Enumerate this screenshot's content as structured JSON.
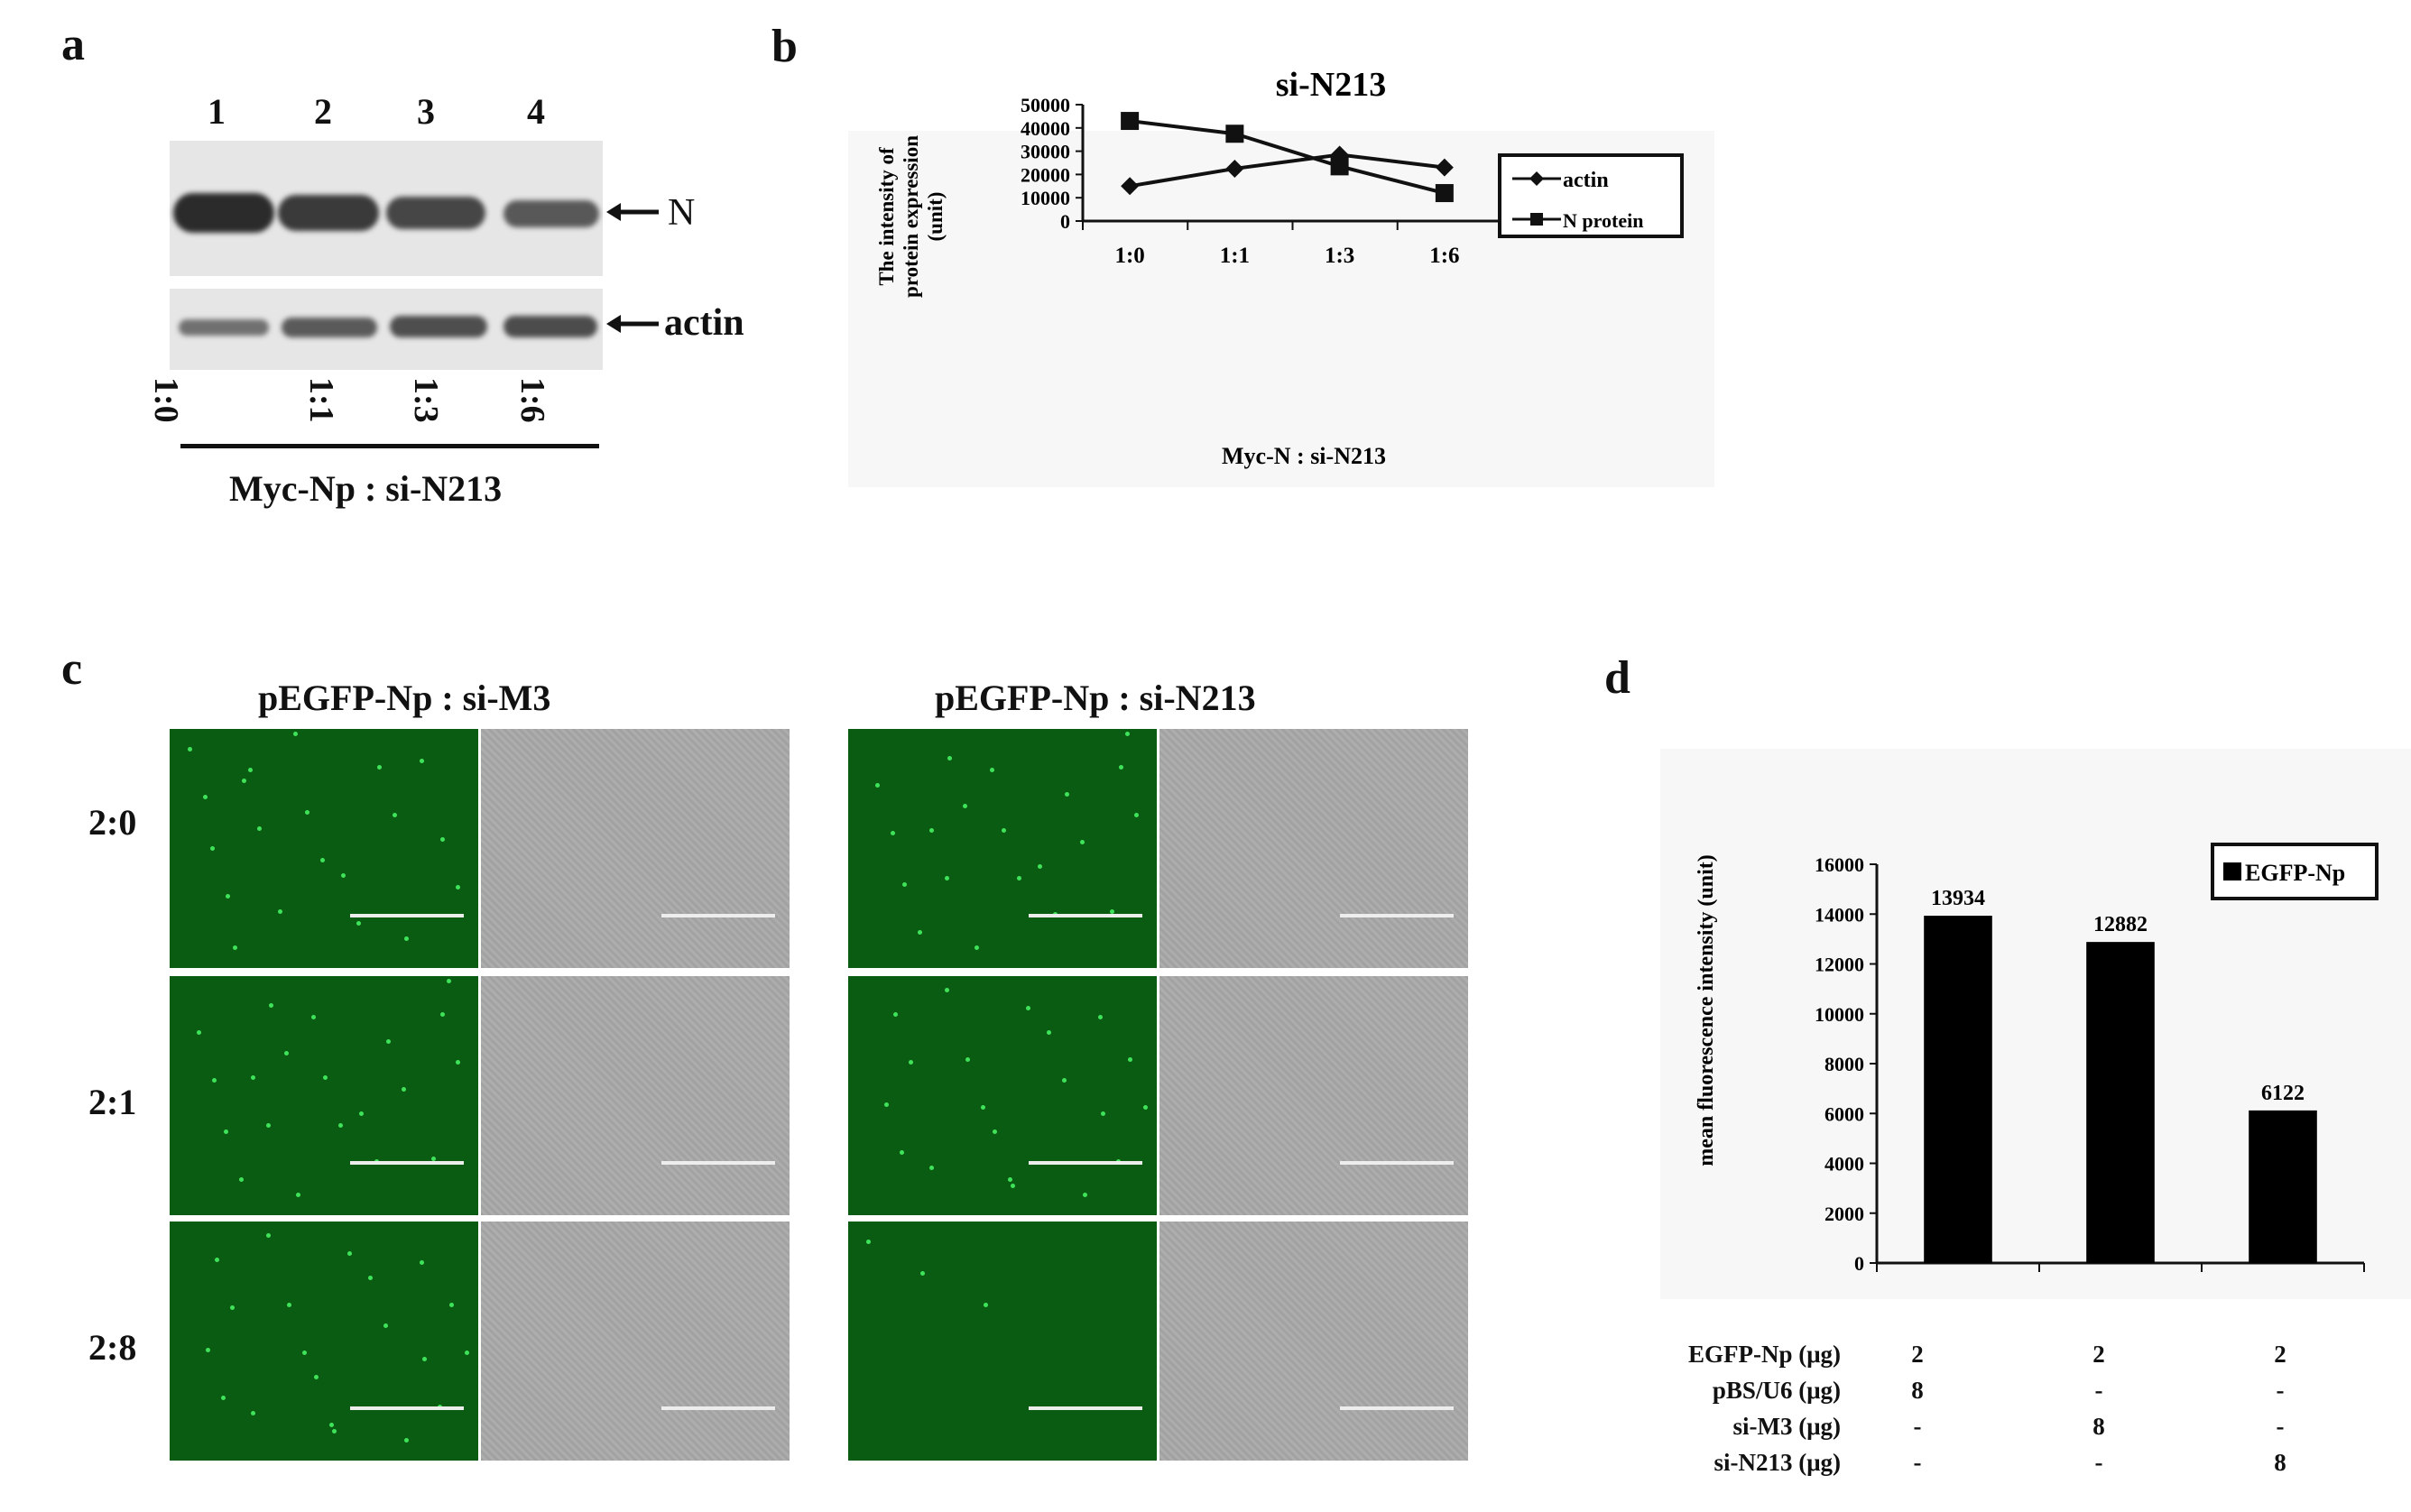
{
  "panel_labels": {
    "a": "a",
    "b": "b",
    "c": "c",
    "d": "d"
  },
  "panel_a": {
    "lanes": [
      "1",
      "2",
      "3",
      "4"
    ],
    "band_labels": {
      "n": "N",
      "actin": "actin"
    },
    "ratios": [
      "1:0",
      "1:1",
      "1:3",
      "1:6"
    ],
    "caption": "Myc-Np : si-N213"
  },
  "panel_c": {
    "left_title": "pEGFP-Np : si-M3",
    "right_title": "pEGFP-Np : si-N213",
    "row_labels": [
      "2:0",
      "2:1",
      "2:8"
    ]
  },
  "panel_d_table": {
    "rows": [
      {
        "label": "EGFP-Np (μg)",
        "values": [
          "2",
          "2",
          "2"
        ]
      },
      {
        "label": "pBS/U6 (μg)",
        "values": [
          "8",
          "-",
          "-"
        ]
      },
      {
        "label": "si-M3 (μg)",
        "values": [
          "-",
          "8",
          "-"
        ]
      },
      {
        "label": "si-N213 (μg)",
        "values": [
          "-",
          "-",
          "8"
        ]
      }
    ]
  },
  "chart_data": [
    {
      "type": "line",
      "title": "si-N213",
      "xlabel": "Myc-N : si-N213",
      "ylabel": "The intensity of protein expression (unit)",
      "categories": [
        "1:0",
        "1:1",
        "1:3",
        "1:6"
      ],
      "ylim": [
        0,
        50000
      ],
      "yticks": [
        0,
        10000,
        20000,
        30000,
        40000,
        50000
      ],
      "legend_position": "top-right",
      "series": [
        {
          "name": "actin",
          "marker": "diamond",
          "values": [
            15000,
            22500,
            28500,
            23000
          ]
        },
        {
          "name": "N protein",
          "marker": "square",
          "values": [
            43000,
            37500,
            23500,
            12000
          ]
        }
      ]
    },
    {
      "type": "bar",
      "title": "",
      "xlabel": "",
      "ylabel": "mean fluorescence intensity (unit)",
      "categories": [
        "",
        "",
        ""
      ],
      "ylim": [
        0,
        16000
      ],
      "yticks": [
        0,
        2000,
        4000,
        6000,
        8000,
        10000,
        12000,
        14000,
        16000
      ],
      "legend_position": "top-right",
      "series": [
        {
          "name": "EGFP-Np",
          "values": [
            13934,
            12882,
            6122
          ]
        }
      ],
      "data_labels": [
        "13934",
        "12882",
        "6122"
      ]
    }
  ]
}
